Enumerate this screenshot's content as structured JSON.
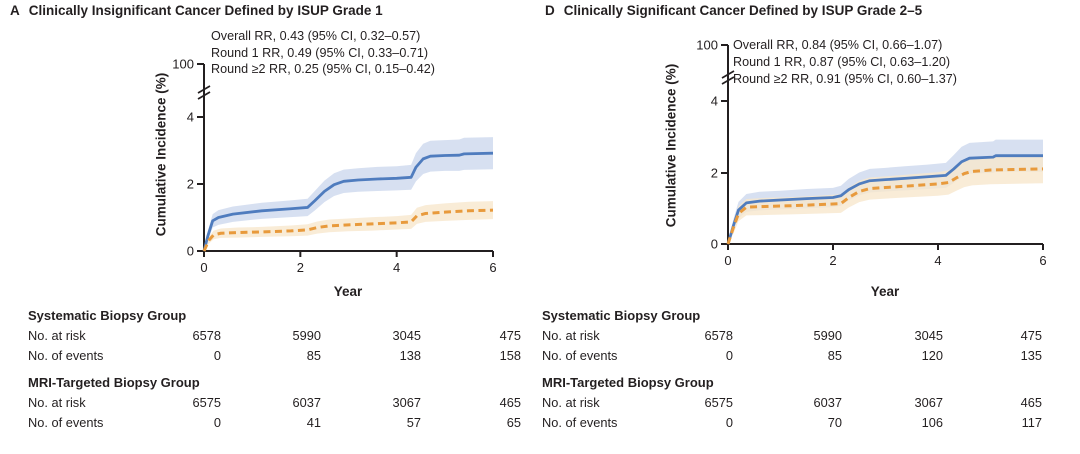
{
  "figure": {
    "colors": {
      "axis": "#231f20",
      "systematic_line": "#4f7cbe",
      "systematic_band": "#cdd8ed",
      "mri_line": "#e89a3c",
      "mri_band": "#f7e7cd"
    }
  },
  "panels": [
    {
      "letter": "A",
      "title": "Clinically Insignificant Cancer Defined by ISUP Grade 1",
      "annotations": [
        "Overall RR, 0.43 (95% CI, 0.32–0.57)",
        "Round 1 RR, 0.49 (95% CI, 0.33–0.71)",
        "Round ≥2 RR, 0.25 (95% CI, 0.15–0.42)"
      ],
      "ylabel": "Cumulative Incidence (%)",
      "xlabel": "Year",
      "risk_table": {
        "groups": [
          {
            "name": "Systematic Biopsy Group",
            "rows": [
              {
                "label": "No. at risk",
                "values": [
                  "6578",
                  "5990",
                  "3045",
                  "475"
                ]
              },
              {
                "label": "No. of events",
                "values": [
                  "0",
                  "85",
                  "138",
                  "158"
                ]
              }
            ]
          },
          {
            "name": "MRI-Targeted Biopsy Group",
            "rows": [
              {
                "label": "No. at risk",
                "values": [
                  "6575",
                  "6037",
                  "3067",
                  "465"
                ]
              },
              {
                "label": "No. of events",
                "values": [
                  "0",
                  "41",
                  "57",
                  "65"
                ]
              }
            ]
          }
        ]
      }
    },
    {
      "letter": "D",
      "title": "Clinically Significant Cancer Defined by ISUP Grade 2–5",
      "annotations": [
        "Overall RR, 0.84 (95% CI, 0.66–1.07)",
        "Round 1 RR, 0.87 (95% CI, 0.63–1.20)",
        "Round ≥2 RR, 0.91 (95% CI, 0.60–1.37)"
      ],
      "ylabel": "Cumulative Incidence (%)",
      "xlabel": "Year",
      "risk_table": {
        "groups": [
          {
            "name": "Systematic Biopsy Group",
            "rows": [
              {
                "label": "No. at risk",
                "values": [
                  "6578",
                  "5990",
                  "3045",
                  "475"
                ]
              },
              {
                "label": "No. of events",
                "values": [
                  "0",
                  "85",
                  "120",
                  "135"
                ]
              }
            ]
          },
          {
            "name": "MRI-Targeted Biopsy Group",
            "rows": [
              {
                "label": "No. at risk",
                "values": [
                  "6575",
                  "6037",
                  "3067",
                  "465"
                ]
              },
              {
                "label": "No. of events",
                "values": [
                  "0",
                  "70",
                  "106",
                  "117"
                ]
              }
            ]
          }
        ]
      }
    }
  ],
  "chart_data": [
    {
      "type": "line",
      "panel": "A",
      "title": "Clinically Insignificant Cancer Defined by ISUP Grade 1",
      "xlabel": "Year",
      "ylabel": "Cumulative Incidence (%)",
      "xlim": [
        0,
        6
      ],
      "xticks": [
        0,
        2,
        4,
        6
      ],
      "ylim_linear": [
        0,
        4
      ],
      "yticks": [
        0,
        2,
        4
      ],
      "y_axis_break_top_label": "100",
      "legend_position": "none",
      "grid": false,
      "rr_annotations": [
        {
          "label": "Overall RR",
          "value": 0.43,
          "ci_low": 0.32,
          "ci_high": 0.57
        },
        {
          "label": "Round 1 RR",
          "value": 0.49,
          "ci_low": 0.33,
          "ci_high": 0.71
        },
        {
          "label": "Round ≥2 RR",
          "value": 0.25,
          "ci_low": 0.15,
          "ci_high": 0.42
        }
      ],
      "series": [
        {
          "key": "systematic",
          "name": "Systematic Biopsy Group",
          "line_style": "solid",
          "color": "#4f7cbe",
          "band_color": "#cdd8ed",
          "points_x_y_cihalf": [
            [
              0,
              0,
              0.02
            ],
            [
              0.08,
              0.45,
              0.15
            ],
            [
              0.18,
              0.9,
              0.2
            ],
            [
              0.3,
              1.0,
              0.22
            ],
            [
              0.6,
              1.1,
              0.23
            ],
            [
              1.2,
              1.2,
              0.24
            ],
            [
              1.8,
              1.26,
              0.25
            ],
            [
              2.15,
              1.3,
              0.26
            ],
            [
              2.3,
              1.5,
              0.29
            ],
            [
              2.5,
              1.78,
              0.32
            ],
            [
              2.7,
              1.98,
              0.34
            ],
            [
              2.9,
              2.08,
              0.35
            ],
            [
              3.2,
              2.12,
              0.35
            ],
            [
              3.6,
              2.15,
              0.36
            ],
            [
              4.0,
              2.17,
              0.36
            ],
            [
              4.3,
              2.2,
              0.37
            ],
            [
              4.4,
              2.5,
              0.42
            ],
            [
              4.55,
              2.75,
              0.45
            ],
            [
              4.7,
              2.83,
              0.46
            ],
            [
              5.0,
              2.85,
              0.46
            ],
            [
              5.3,
              2.86,
              0.47
            ],
            [
              5.4,
              2.9,
              0.48
            ],
            [
              6,
              2.92,
              0.48
            ]
          ]
        },
        {
          "key": "mri",
          "name": "MRI-Targeted Biopsy Group",
          "line_style": "dashed",
          "color": "#e89a3c",
          "band_color": "#f7e7cd",
          "points_x_y_cihalf": [
            [
              0,
              0,
              0.02
            ],
            [
              0.1,
              0.32,
              0.1
            ],
            [
              0.2,
              0.48,
              0.13
            ],
            [
              0.35,
              0.53,
              0.14
            ],
            [
              0.7,
              0.55,
              0.15
            ],
            [
              1.2,
              0.57,
              0.15
            ],
            [
              1.8,
              0.6,
              0.16
            ],
            [
              2.15,
              0.63,
              0.17
            ],
            [
              2.35,
              0.7,
              0.18
            ],
            [
              2.6,
              0.75,
              0.19
            ],
            [
              3.0,
              0.78,
              0.19
            ],
            [
              3.5,
              0.81,
              0.2
            ],
            [
              4.0,
              0.84,
              0.2
            ],
            [
              4.3,
              0.87,
              0.21
            ],
            [
              4.42,
              1.05,
              0.24
            ],
            [
              4.6,
              1.12,
              0.25
            ],
            [
              5.0,
              1.16,
              0.26
            ],
            [
              5.5,
              1.2,
              0.27
            ],
            [
              6,
              1.22,
              0.27
            ]
          ]
        }
      ]
    },
    {
      "type": "line",
      "panel": "D",
      "title": "Clinically Significant Cancer Defined by ISUP Grade 2–5",
      "xlabel": "Year",
      "ylabel": "Cumulative Incidence (%)",
      "xlim": [
        0,
        6
      ],
      "xticks": [
        0,
        2,
        4,
        6
      ],
      "ylim_linear": [
        0,
        4
      ],
      "yticks": [
        0,
        2,
        4
      ],
      "y_axis_break_top_label": "100",
      "legend_position": "none",
      "grid": false,
      "rr_annotations": [
        {
          "label": "Overall RR",
          "value": 0.84,
          "ci_low": 0.66,
          "ci_high": 1.07
        },
        {
          "label": "Round 1 RR",
          "value": 0.87,
          "ci_low": 0.63,
          "ci_high": 1.2
        },
        {
          "label": "Round ≥2 RR",
          "value": 0.91,
          "ci_low": 0.6,
          "ci_high": 1.37
        }
      ],
      "series": [
        {
          "key": "systematic",
          "name": "Systematic Biopsy Group",
          "line_style": "solid",
          "color": "#4f7cbe",
          "band_color": "#cdd8ed",
          "points_x_y_cihalf": [
            [
              0,
              0,
              0.02
            ],
            [
              0.1,
              0.5,
              0.18
            ],
            [
              0.2,
              0.95,
              0.23
            ],
            [
              0.35,
              1.15,
              0.25
            ],
            [
              0.6,
              1.2,
              0.26
            ],
            [
              1.0,
              1.23,
              0.26
            ],
            [
              1.5,
              1.27,
              0.27
            ],
            [
              2.0,
              1.3,
              0.27
            ],
            [
              2.15,
              1.35,
              0.28
            ],
            [
              2.3,
              1.52,
              0.3
            ],
            [
              2.5,
              1.68,
              0.32
            ],
            [
              2.7,
              1.77,
              0.33
            ],
            [
              3.0,
              1.8,
              0.33
            ],
            [
              3.4,
              1.84,
              0.34
            ],
            [
              3.8,
              1.88,
              0.34
            ],
            [
              4.15,
              1.92,
              0.35
            ],
            [
              4.3,
              2.1,
              0.39
            ],
            [
              4.45,
              2.3,
              0.42
            ],
            [
              4.6,
              2.4,
              0.43
            ],
            [
              5.05,
              2.43,
              0.44
            ],
            [
              5.1,
              2.47,
              0.45
            ],
            [
              6,
              2.47,
              0.45
            ]
          ]
        },
        {
          "key": "mri",
          "name": "MRI-Targeted Biopsy Group",
          "line_style": "dashed",
          "color": "#e89a3c",
          "band_color": "#f7e7cd",
          "points_x_y_cihalf": [
            [
              0,
              0,
              0.02
            ],
            [
              0.1,
              0.45,
              0.17
            ],
            [
              0.2,
              0.85,
              0.21
            ],
            [
              0.35,
              1.03,
              0.23
            ],
            [
              0.7,
              1.05,
              0.24
            ],
            [
              1.2,
              1.07,
              0.24
            ],
            [
              1.7,
              1.1,
              0.25
            ],
            [
              2.15,
              1.13,
              0.26
            ],
            [
              2.3,
              1.3,
              0.28
            ],
            [
              2.5,
              1.47,
              0.3
            ],
            [
              2.7,
              1.55,
              0.31
            ],
            [
              3.0,
              1.58,
              0.31
            ],
            [
              3.5,
              1.63,
              0.32
            ],
            [
              4.0,
              1.68,
              0.33
            ],
            [
              4.2,
              1.72,
              0.34
            ],
            [
              4.35,
              1.85,
              0.36
            ],
            [
              4.5,
              1.97,
              0.38
            ],
            [
              4.65,
              2.03,
              0.39
            ],
            [
              5.0,
              2.07,
              0.4
            ],
            [
              6,
              2.1,
              0.4
            ]
          ]
        }
      ]
    }
  ]
}
